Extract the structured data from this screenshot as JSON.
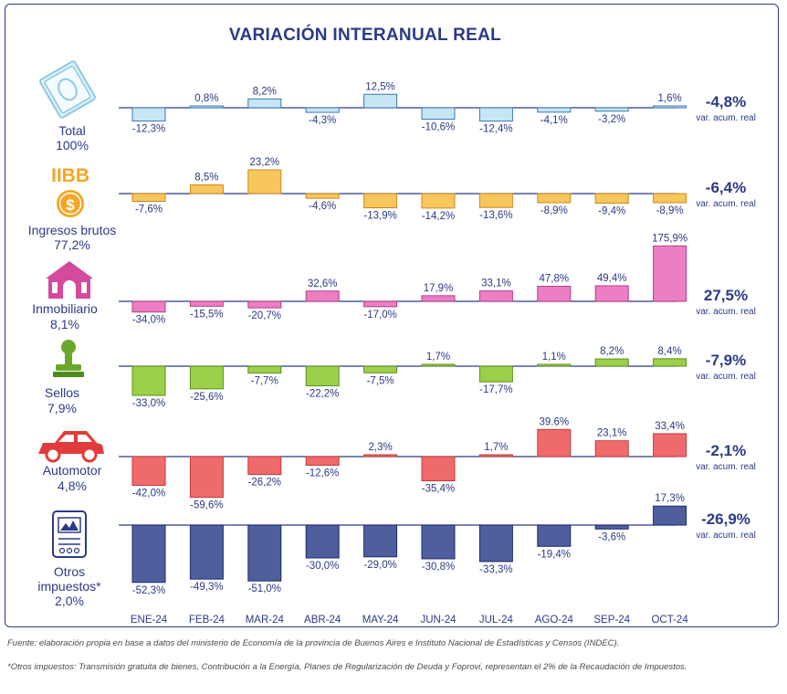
{
  "title": "VARIACIÓN INTERANUAL REAL",
  "source_note": "Fuente: elaboración propia en base a datos del ministerio de Economía de la provincia de Buenos Aires e Instituto Nacional de Estadísticas y Censos (INDEC).",
  "footnote": "*Otros impuestos: Transmisión gratuita de bienes, Contribución a la Energía, Planes de Regularización de Deuda y Foprovi, representan el 2% de la Recaudación de Impuestos.",
  "chart_data": {
    "type": "bar",
    "categories": [
      "ENE-24",
      "FEB-24",
      "MAR-24",
      "ABR-24",
      "MAY-24",
      "JUN-24",
      "JUL-24",
      "AGO-24",
      "SEP-24",
      "OCT-24"
    ],
    "acum_label": "var. acum. real",
    "series": [
      {
        "name": "Total",
        "share": "100%",
        "icon": "money-icon",
        "color": "#c7e6f4",
        "stroke": "#3a78b5",
        "values": [
          -12.3,
          0.8,
          8.2,
          -4.3,
          12.5,
          -10.6,
          -12.4,
          -4.1,
          -3.2,
          1.6
        ],
        "labels": [
          "-12,3%",
          "0,8%",
          "8,2%",
          "-4,3%",
          "12,5%",
          "-10,6%",
          "-12,4%",
          "-4,1%",
          "-3,2%",
          "1,6%"
        ],
        "acum": "-4,8%"
      },
      {
        "name": "Ingresos brutos",
        "share": "77,2%",
        "icon": "iibb-coin-icon",
        "icon_text": "IIBB",
        "coin_text": "$",
        "color": "#f7c65c",
        "stroke": "#c98a1b",
        "values": [
          -7.6,
          8.5,
          23.2,
          -4.6,
          -13.9,
          -14.2,
          -13.6,
          -8.9,
          -9.4,
          -8.9
        ],
        "labels": [
          "-7,6%",
          "8,5%",
          "23,2%",
          "-4,6%",
          "-13,9%",
          "-14,2%",
          "-13,6%",
          "-8,9%",
          "-9,4%",
          "-8,9%"
        ],
        "acum": "-6,4%"
      },
      {
        "name": "Inmobiliario",
        "share": "8,1%",
        "icon": "house-icon",
        "color": "#ec7fc4",
        "stroke": "#b53c8a",
        "values": [
          -34.0,
          -15.5,
          -20.7,
          32.6,
          -17.0,
          17.9,
          33.1,
          47.8,
          49.4,
          175.9
        ],
        "labels": [
          "-34,0%",
          "-15,5%",
          "-20,7%",
          "32,6%",
          "-17,0%",
          "17,9%",
          "33,1%",
          "47,8%",
          "49,4%",
          "175,9%"
        ],
        "acum": "27,5%"
      },
      {
        "name": "Sellos",
        "share": "7,9%",
        "icon": "stamp-icon",
        "color": "#9ccf4a",
        "stroke": "#5d8f1d",
        "values": [
          -33.0,
          -25.6,
          -7.7,
          -22.2,
          -7.5,
          1.7,
          -17.7,
          1.1,
          8.2,
          8.4
        ],
        "labels": [
          "-33,0%",
          "-25,6%",
          "-7,7%",
          "-22,2%",
          "-7,5%",
          "1,7%",
          "-17,7%",
          "1,1%",
          "8,2%",
          "8,4%"
        ],
        "acum": "-7,9%"
      },
      {
        "name": "Automotor",
        "share": "4,8%",
        "icon": "car-icon",
        "color": "#ef6b6b",
        "stroke": "#c23a3a",
        "values": [
          -42.0,
          -59.6,
          -26.2,
          -12.6,
          2.3,
          -35.4,
          1.7,
          39.6,
          23.1,
          33.4
        ],
        "labels": [
          "-42,0%",
          "-59,6%",
          "-26,2%",
          "-12,6%",
          "2,3%",
          "-35,4%",
          "1,7%",
          "39.6%",
          "23,1%",
          "33,4%"
        ],
        "acum": "-2,1%"
      },
      {
        "name": "Otros impuestos*",
        "share": "2,0%",
        "icon": "document-icon",
        "color": "#4f5f9e",
        "stroke": "#1f2a66",
        "values": [
          -52.3,
          -49.3,
          -51.0,
          -30.0,
          -29.0,
          -30.8,
          -33.3,
          -19.4,
          -3.6,
          17.3
        ],
        "labels": [
          "-52,3%",
          "-49,3%",
          "-51,0%",
          "-30,0%",
          "-29,0%",
          "-30,8%",
          "-33,3%",
          "-19,4%",
          "-3,6%",
          "17,3%"
        ],
        "acum": "-26,9%"
      }
    ]
  }
}
